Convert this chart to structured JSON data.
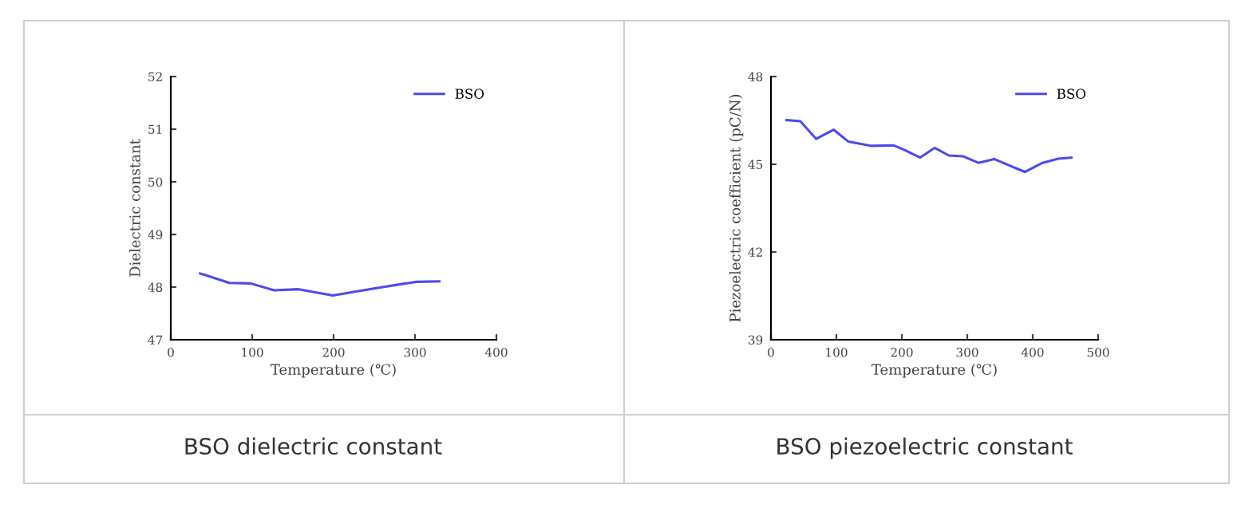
{
  "chart_data": [
    {
      "type": "line",
      "xlabel": "Temperature (℃)",
      "ylabel": "Dielectric constant",
      "xlim": [
        0,
        400
      ],
      "xticks": [
        0,
        100,
        200,
        300,
        400
      ],
      "ylim": [
        47,
        52
      ],
      "yticks": [
        47,
        48,
        49,
        50,
        51,
        52
      ],
      "grid": false,
      "legend": "top right",
      "marker": "none",
      "line_style": "solid",
      "annotations": [
        "BSO dielectric constant"
      ],
      "series": [
        {
          "name": "BSO",
          "color": "#4a4aee",
          "x": [
            36,
            72,
            98,
            127,
            157,
            199,
            248,
            301,
            330
          ],
          "values": [
            48.26,
            48.08,
            48.07,
            47.94,
            47.96,
            47.84,
            47.97,
            48.1,
            48.11
          ]
        }
      ]
    },
    {
      "type": "line",
      "xlabel": "Temperature (℃)",
      "ylabel": "Piezoelectric coefficient (pC/N)",
      "xlim": [
        0,
        500
      ],
      "xticks": [
        0,
        100,
        200,
        300,
        400,
        500
      ],
      "ylim": [
        39,
        48
      ],
      "yticks": [
        39,
        42,
        45,
        48
      ],
      "grid": false,
      "legend": "top right",
      "marker": "none",
      "line_style": "solid",
      "annotations": [
        "BSO piezoelectric constant"
      ],
      "series": [
        {
          "name": "BSO",
          "color": "#4a4aee",
          "x": [
            24,
            45,
            69,
            96,
            118,
            154,
            187,
            203,
            228,
            250,
            272,
            294,
            317,
            341,
            364,
            388,
            415,
            439,
            459
          ],
          "values": [
            46.51,
            46.47,
            45.87,
            46.18,
            45.78,
            45.63,
            45.65,
            45.5,
            45.23,
            45.56,
            45.3,
            45.27,
            45.05,
            45.18,
            44.96,
            44.74,
            45.05,
            45.19,
            45.23
          ]
        }
      ]
    }
  ]
}
